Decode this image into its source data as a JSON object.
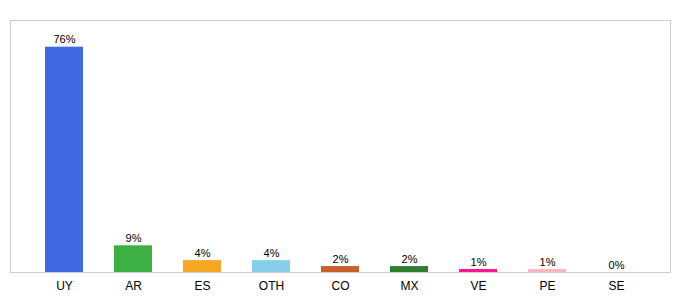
{
  "chart_data": {
    "type": "bar",
    "categories": [
      "UY",
      "AR",
      "ES",
      "OTH",
      "CO",
      "MX",
      "VE",
      "PE",
      "SE"
    ],
    "values": [
      76,
      9,
      4,
      4,
      2,
      2,
      1,
      1,
      0
    ],
    "value_labels": [
      "76%",
      "9%",
      "4%",
      "4%",
      "2%",
      "2%",
      "1%",
      "1%",
      "0%"
    ],
    "colors": [
      "#4169e1",
      "#3cb043",
      "#f5a623",
      "#87ceeb",
      "#c8602a",
      "#2e7d32",
      "#ff1493",
      "#ffb6c1",
      "#aaaaaa"
    ],
    "ylim": [
      0,
      85
    ],
    "data_labels": true,
    "tick_labels": "x",
    "grid": false
  }
}
